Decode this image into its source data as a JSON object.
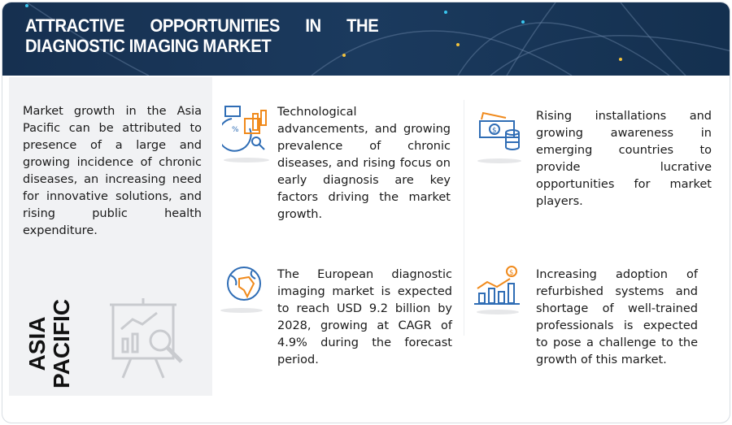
{
  "header": {
    "title_line1": [
      "ATTRACTIVE",
      "OPPORTUNITIES",
      "IN",
      "THE"
    ],
    "title_line2": "DIAGNOSTIC IMAGING MARKET"
  },
  "region": {
    "label": "ASIA PACIFIC",
    "description": "Market growth in the Asia Pacific can be attributed to presence of a large and growing incidence of chronic diseases, an increasing need for innovative solutions, and rising public health expenditure."
  },
  "cards": [
    {
      "icon": "analytics-icon",
      "text": "Technological advancements, and growing prevalence of chronic diseases, and rising focus on early diagnosis are key factors driving the market growth."
    },
    {
      "icon": "money-icon",
      "text": "Rising installations and growing awareness in emerging countries to provide lucrative opportunities for market players."
    },
    {
      "icon": "globe-icon",
      "text": "The European diagnostic imaging market is expected to reach USD 9.2 billion by 2028, growing at CAGR of 4.9% during the forecast period."
    },
    {
      "icon": "growth-chart-icon",
      "text": "Increasing adoption of refurbished systems and shortage of well-trained professionals is expected to pose a challenge to the growth of this market."
    }
  ],
  "colors": {
    "header_bg": "#163050",
    "icon_blue": "#2f6db5",
    "icon_orange": "#f08a1c",
    "panel_bg": "#f1f2f4"
  }
}
